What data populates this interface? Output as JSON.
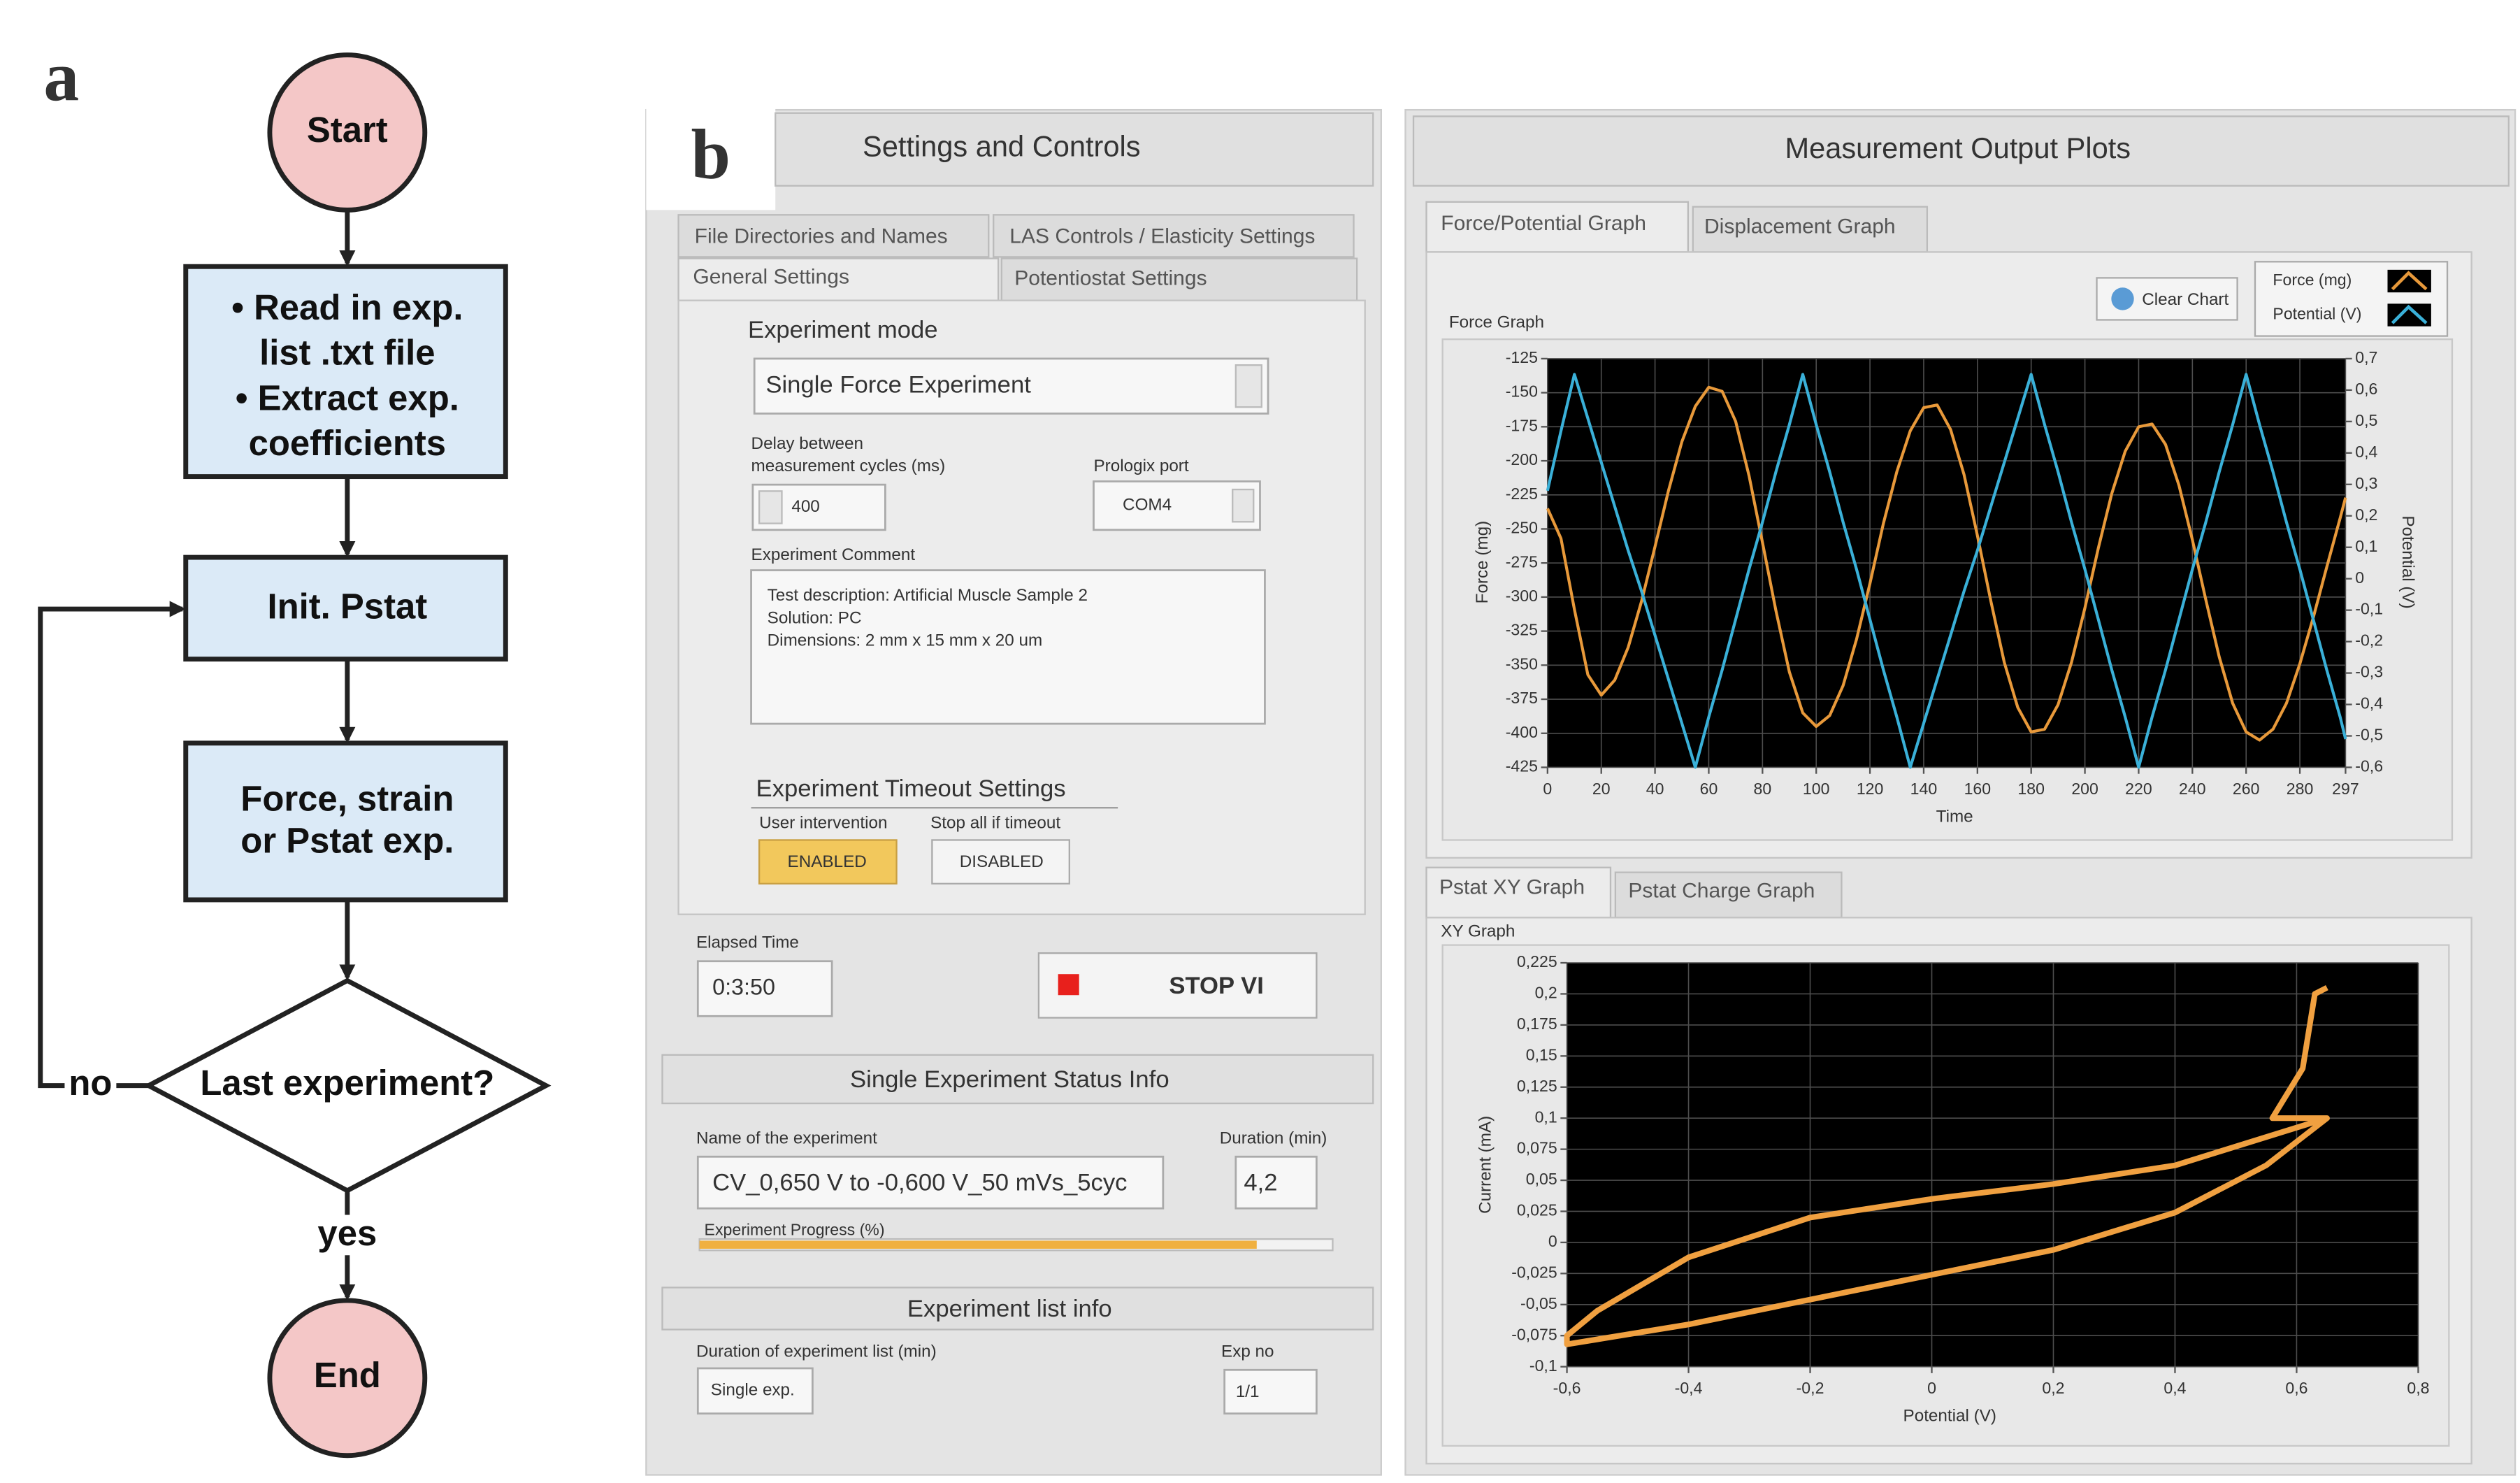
{
  "panel_labels": [
    "a",
    "b"
  ],
  "flowchart": {
    "nodes": [
      {
        "label": "Start"
      },
      {
        "lines": [
          "• Read in exp.",
          "list .txt file",
          "• Extract exp.",
          "coefficients"
        ]
      },
      {
        "label": "Init. Pstat"
      },
      {
        "lines": [
          "Force, strain",
          "or Pstat exp."
        ]
      },
      {
        "label": "Last experiment?"
      },
      {
        "label": "End"
      }
    ],
    "edge_labels": [
      "no",
      "yes"
    ]
  },
  "settings": {
    "title": "Settings and Controls",
    "tabs": [
      "File Directories and Names",
      "LAS Controls / Elasticity Settings",
      "General Settings",
      "Potentiostat Settings"
    ],
    "experiment_mode": {
      "label": "Experiment mode",
      "value": "Single Force Experiment"
    },
    "delay": {
      "label_lines": [
        "Delay between",
        "measurement cycles (ms)"
      ],
      "value": "400"
    },
    "port": {
      "label": "Prologix port",
      "value": "COM4"
    },
    "comment": {
      "label": "Experiment Comment",
      "lines": [
        "Test description: Artificial Muscle Sample 2",
        "Solution: PC",
        "Dimensions: 2 mm x 15 mm x 20 um"
      ]
    },
    "timeout": {
      "title": "Experiment Timeout Settings",
      "user_intervention": {
        "label": "User intervention",
        "value": "ENABLED"
      },
      "stop_all": {
        "label": "Stop all if timeout",
        "value": "DISABLED"
      }
    },
    "elapsed": {
      "label": "Elapsed Time",
      "value": "0:3:50"
    },
    "stop_button": "STOP VI",
    "status": {
      "title": "Single Experiment Status Info",
      "name_label": "Name of the experiment",
      "name": "CV_0,650 V to -0,600 V_50 mVs_5cyc",
      "duration_label": "Duration (min)",
      "duration": "4,2",
      "progress_label": "Experiment Progress (%)",
      "progress": 88
    },
    "list_info": {
      "title": "Experiment list info",
      "duration_label": "Duration of experiment list (min)",
      "duration": "Single exp.",
      "exp_no_label": "Exp no",
      "exp_no": "1/1"
    }
  },
  "output": {
    "title": "Measurement Output Plots",
    "tabs_top": [
      "Force/Potential Graph",
      "Displacement Graph"
    ],
    "clear_button": "Clear Chart",
    "tabs_bottom": [
      "Pstat XY Graph",
      "Pstat Charge Graph"
    ]
  },
  "chart_data": [
    {
      "type": "line",
      "title": "Force Graph",
      "xlabel": "Time",
      "ylabel": "Force (mg)",
      "y2label": "Potential (V)",
      "x": [
        0,
        5,
        10,
        15,
        20,
        25,
        30,
        35,
        40,
        45,
        50,
        55,
        60,
        65,
        70,
        75,
        80,
        85,
        90,
        95,
        100,
        105,
        110,
        115,
        120,
        125,
        130,
        135,
        140,
        145,
        150,
        155,
        160,
        165,
        170,
        175,
        180,
        185,
        190,
        195,
        200,
        205,
        210,
        215,
        220,
        225,
        230,
        235,
        240,
        245,
        250,
        255,
        260,
        265,
        270,
        275,
        280,
        285,
        290,
        295,
        297
      ],
      "xlim": [
        0,
        297
      ],
      "xticks": [
        0,
        20,
        40,
        60,
        80,
        100,
        120,
        140,
        160,
        180,
        200,
        220,
        240,
        260,
        280,
        297
      ],
      "ylim": [
        -425,
        -125
      ],
      "yticks": [
        -425,
        -400,
        -375,
        -350,
        -325,
        -300,
        -275,
        -250,
        -225,
        -200,
        -175,
        -150,
        -125
      ],
      "y2lim": [
        -0.6,
        0.7
      ],
      "y2ticks": [
        {
          "value": -0.6,
          "label": "-0,6"
        },
        {
          "value": -0.5,
          "label": "-0,5"
        },
        {
          "value": -0.4,
          "label": "-0,4"
        },
        {
          "value": -0.3,
          "label": "-0,3"
        },
        {
          "value": -0.2,
          "label": "-0,2"
        },
        {
          "value": -0.1,
          "label": "-0,1"
        },
        0,
        {
          "value": 0.1,
          "label": "0,1"
        },
        {
          "value": 0.2,
          "label": "0,2"
        },
        {
          "value": 0.3,
          "label": "0,3"
        },
        {
          "value": 0.4,
          "label": "0,4"
        },
        {
          "value": 0.5,
          "label": "0,5"
        },
        {
          "value": 0.6,
          "label": "0,6"
        },
        {
          "value": 0.7,
          "label": "0,7"
        }
      ],
      "grid": true,
      "legend": "upper right",
      "series": [
        {
          "name": "Force (mg)",
          "color": "#e8993a",
          "values": [
            -235,
            -257,
            -309,
            -357,
            -372,
            -361,
            -337,
            -303,
            -263,
            -222,
            -186,
            -160,
            -146,
            -149,
            -171,
            -211,
            -260,
            -310,
            -355,
            -385,
            -395,
            -387,
            -365,
            -331,
            -290,
            -246,
            -208,
            -178,
            -161,
            -159,
            -177,
            -210,
            -255,
            -303,
            -348,
            -381,
            -399,
            -397,
            -379,
            -348,
            -308,
            -264,
            -224,
            -193,
            -175,
            -173,
            -188,
            -218,
            -258,
            -302,
            -344,
            -378,
            -399,
            -405,
            -397,
            -378,
            -349,
            -315,
            -278,
            -242,
            -227
          ]
        },
        {
          "name": "Potential (V)",
          "color": "#3ab0d8",
          "axis": "y2",
          "values": [
            0.28,
            0.47,
            0.65,
            0.51,
            0.37,
            0.23,
            0.09,
            -0.04,
            -0.18,
            -0.32,
            -0.46,
            -0.6,
            -0.44,
            -0.29,
            -0.13,
            0.03,
            0.18,
            0.34,
            0.49,
            0.65,
            0.49,
            0.34,
            0.18,
            0.03,
            -0.13,
            -0.29,
            -0.44,
            -0.6,
            -0.46,
            -0.32,
            -0.18,
            -0.04,
            0.09,
            0.23,
            0.37,
            0.51,
            0.65,
            0.49,
            0.34,
            0.18,
            0.03,
            -0.13,
            -0.29,
            -0.44,
            -0.6,
            -0.44,
            -0.29,
            -0.13,
            0.03,
            0.18,
            0.34,
            0.49,
            0.65,
            0.49,
            0.34,
            0.18,
            0.03,
            -0.13,
            -0.29,
            -0.44,
            -0.51
          ]
        }
      ]
    },
    {
      "type": "line",
      "title": "XY Graph",
      "xlabel": "Potential (V)",
      "ylabel": "Current (mA)",
      "x": [
        0.65,
        0.63,
        0.61,
        0.56,
        0.65,
        0.4,
        0.2,
        0,
        -0.2,
        -0.4,
        -0.55,
        -0.6,
        -0.6,
        -0.4,
        -0.2,
        0,
        0.2,
        0.4,
        0.55,
        0.65
      ],
      "xlim": [
        -0.6,
        0.8
      ],
      "xticks": [
        {
          "value": -0.6,
          "label": "-0,6"
        },
        {
          "value": -0.4,
          "label": "-0,4"
        },
        {
          "value": -0.2,
          "label": "-0,2"
        },
        0,
        {
          "value": 0.2,
          "label": "0,2"
        },
        {
          "value": 0.4,
          "label": "0,4"
        },
        {
          "value": 0.6,
          "label": "0,6"
        },
        {
          "value": 0.8,
          "label": "0,8"
        }
      ],
      "ylim": [
        -0.1,
        0.225
      ],
      "yticks": [
        {
          "value": -0.1,
          "label": "-0,1"
        },
        {
          "value": -0.075,
          "label": "-0,075"
        },
        {
          "value": -0.05,
          "label": "-0,05"
        },
        {
          "value": -0.025,
          "label": "-0,025"
        },
        0,
        {
          "value": 0.025,
          "label": "0,025"
        },
        {
          "value": 0.05,
          "label": "0,05"
        },
        {
          "value": 0.075,
          "label": "0,075"
        },
        {
          "value": 0.1,
          "label": "0,1"
        },
        {
          "value": 0.125,
          "label": "0,125"
        },
        {
          "value": 0.15,
          "label": "0,15"
        },
        {
          "value": 0.175,
          "label": "0,175"
        },
        {
          "value": 0.2,
          "label": "0,2"
        },
        {
          "value": 0.225,
          "label": "0,225"
        }
      ],
      "grid": true,
      "series": [
        {
          "color": "#f0a040",
          "values": [
            0.205,
            0.2,
            0.14,
            0.1,
            0.1,
            0.062,
            0.047,
            0.035,
            0.02,
            -0.012,
            -0.055,
            -0.075,
            -0.082,
            -0.066,
            -0.046,
            -0.026,
            -0.006,
            0.024,
            0.062,
            0.1
          ]
        }
      ]
    }
  ]
}
